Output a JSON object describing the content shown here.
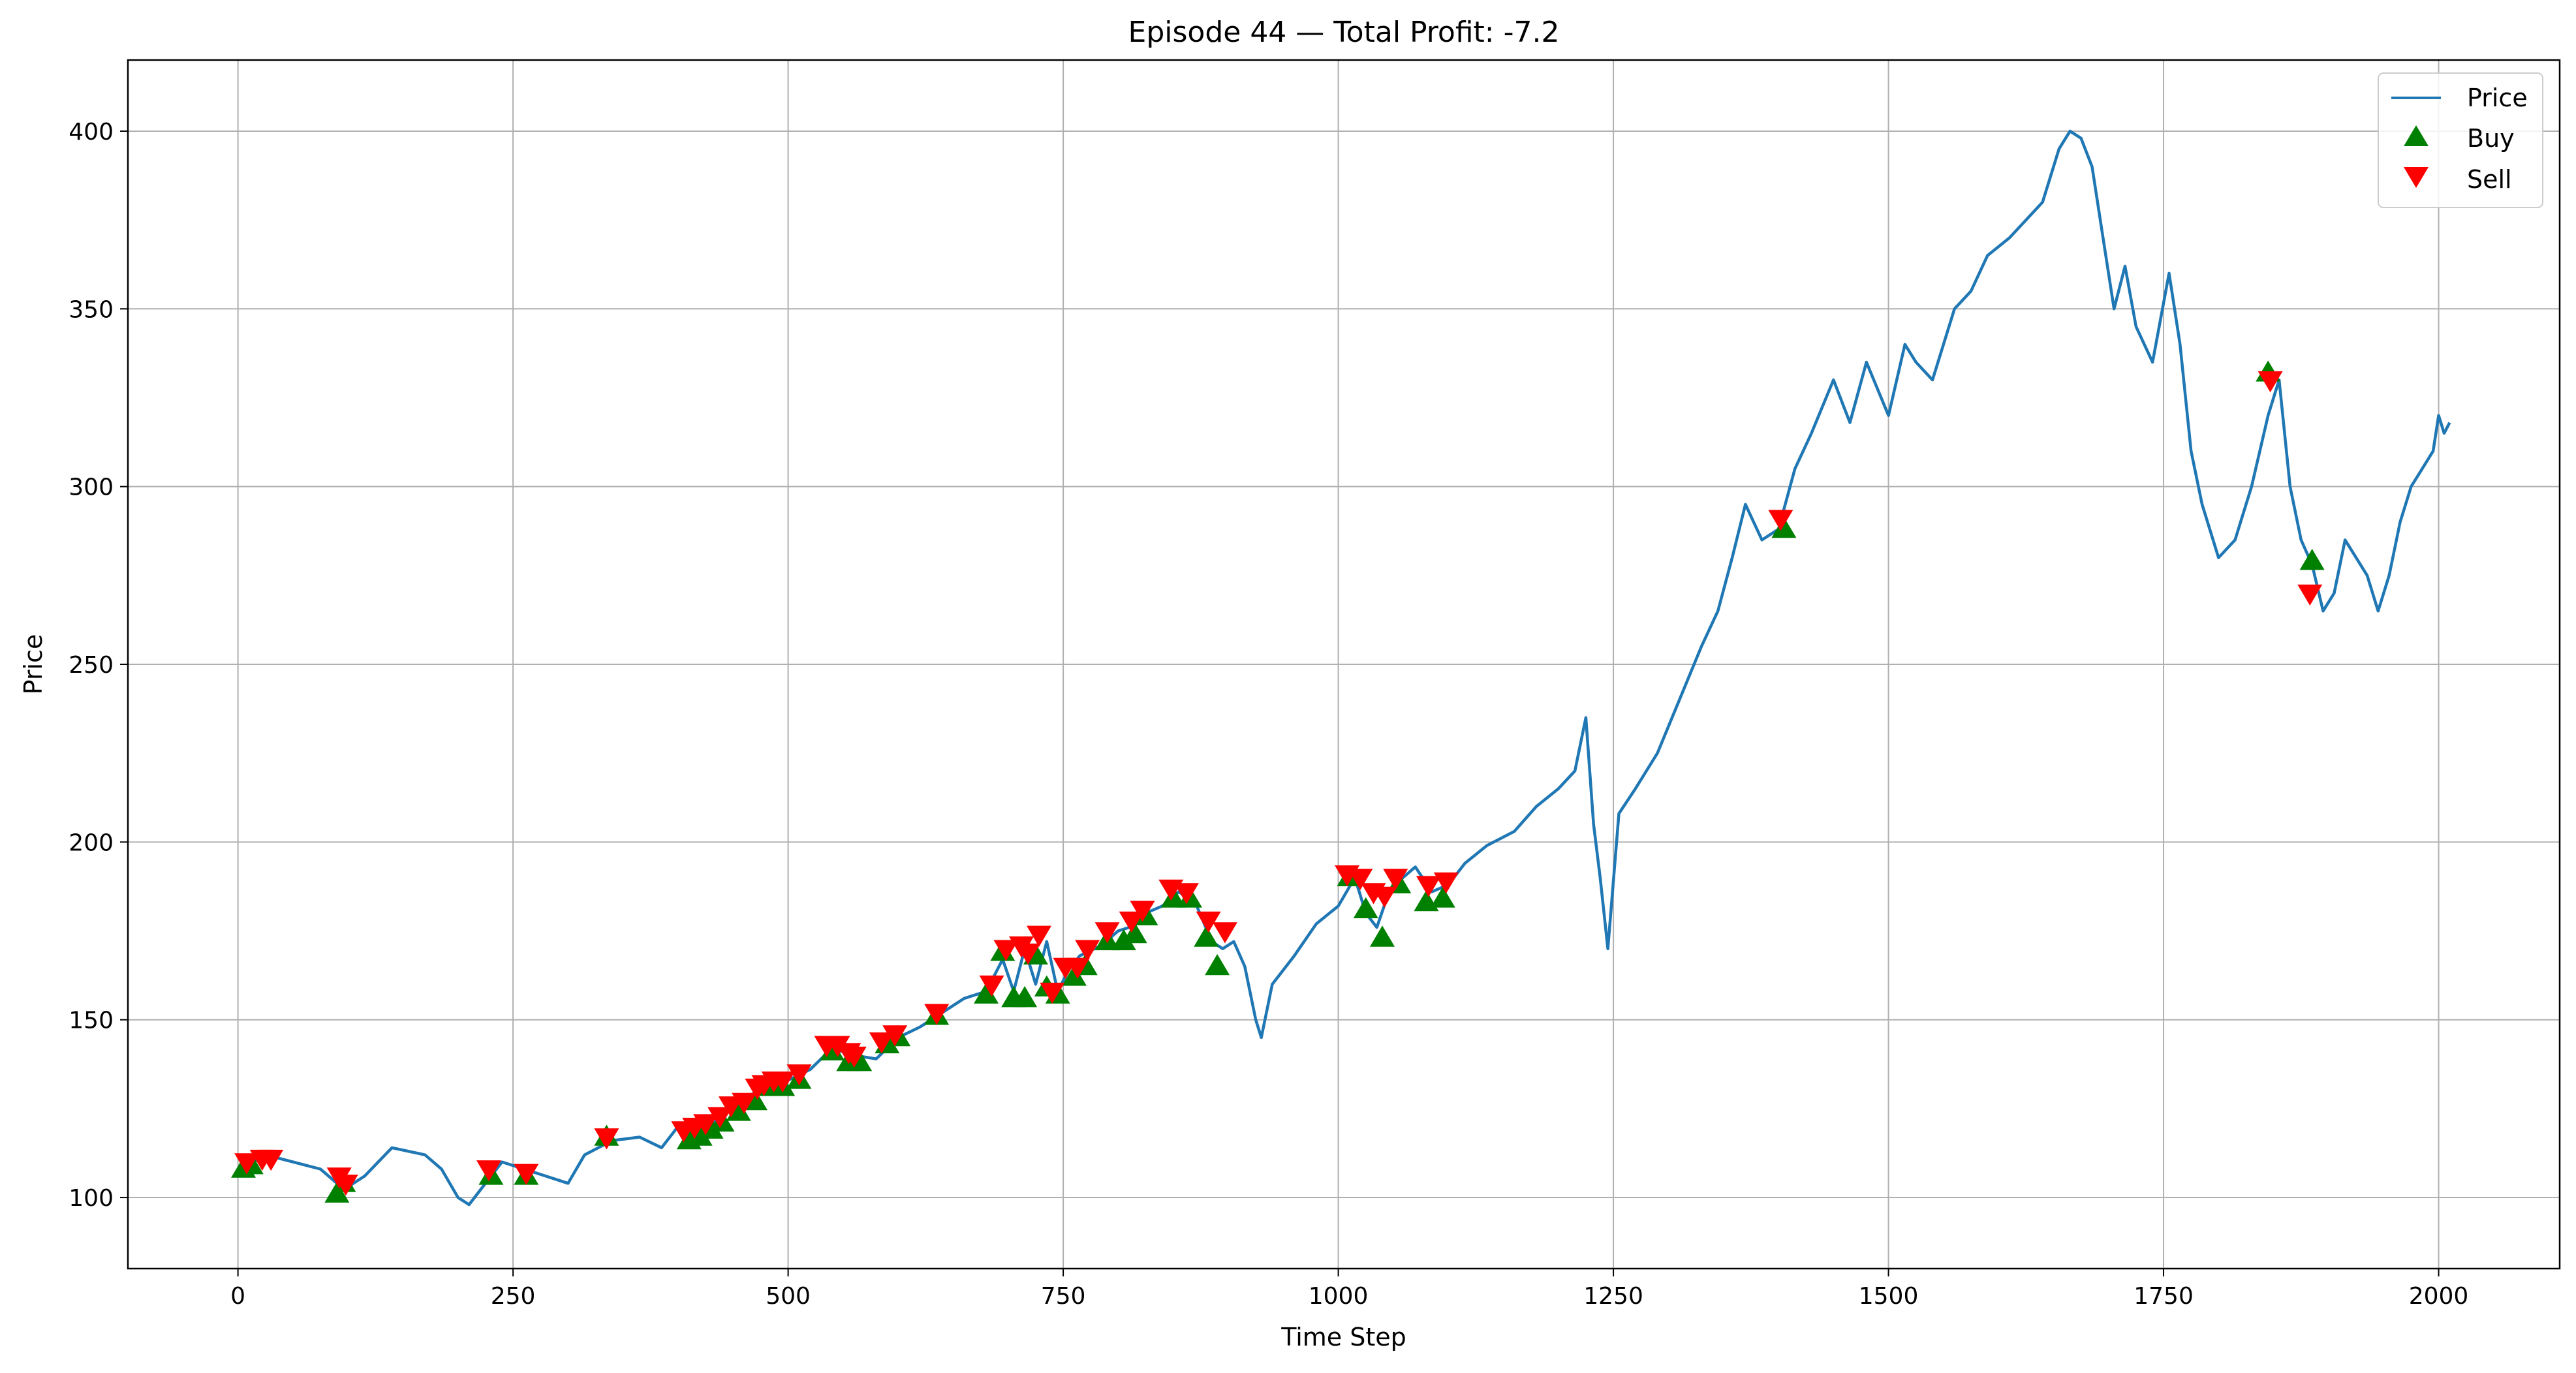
{
  "chart_data": {
    "type": "line",
    "title": "Episode 44 — Total Profit: -7.2",
    "xlabel": "Time Step",
    "ylabel": "Price",
    "xlim": [
      -100,
      2110
    ],
    "ylim": [
      80,
      420
    ],
    "xticks": [
      0,
      250,
      500,
      750,
      1000,
      1250,
      1500,
      1750,
      2000
    ],
    "yticks": [
      100,
      150,
      200,
      250,
      300,
      350,
      400
    ],
    "grid": true,
    "legend": {
      "position": "top-right",
      "entries": [
        "Price",
        "Buy",
        "Sell"
      ]
    },
    "colors": {
      "price": "#1f77b4",
      "buy": "#008000",
      "sell": "#ff0000",
      "grid": "#b0b0b0"
    },
    "series": [
      {
        "name": "Price",
        "marker": "line",
        "x": [
          0,
          25,
          50,
          75,
          90,
          100,
          115,
          140,
          170,
          185,
          200,
          210,
          225,
          240,
          260,
          280,
          300,
          315,
          340,
          365,
          385,
          400,
          420,
          440,
          460,
          480,
          500,
          520,
          540,
          560,
          580,
          600,
          620,
          640,
          660,
          680,
          695,
          705,
          715,
          725,
          735,
          745,
          755,
          765,
          785,
          800,
          810,
          825,
          840,
          855,
          870,
          885,
          895,
          905,
          915,
          925,
          930,
          940,
          960,
          980,
          1000,
          1015,
          1025,
          1035,
          1045,
          1055,
          1070,
          1085,
          1100,
          1115,
          1135,
          1160,
          1180,
          1200,
          1215,
          1225,
          1232,
          1238,
          1245,
          1255,
          1270,
          1290,
          1310,
          1330,
          1345,
          1358,
          1370,
          1385,
          1400,
          1415,
          1430,
          1450,
          1465,
          1480,
          1500,
          1515,
          1525,
          1540,
          1560,
          1575,
          1590,
          1610,
          1625,
          1640,
          1655,
          1665,
          1675,
          1685,
          1695,
          1705,
          1715,
          1725,
          1740,
          1755,
          1765,
          1775,
          1785,
          1800,
          1815,
          1830,
          1845,
          1855,
          1865,
          1875,
          1885,
          1895,
          1905,
          1915,
          1925,
          1935,
          1945,
          1955,
          1965,
          1975,
          1985,
          1995,
          2000,
          2005,
          2010
        ],
        "y": [
          107,
          112,
          110,
          108,
          104,
          103,
          106,
          114,
          112,
          108,
          100,
          98,
          104,
          110,
          108,
          106,
          104,
          112,
          116,
          117,
          114,
          120,
          118,
          123,
          128,
          131,
          133,
          136,
          142,
          140,
          139,
          145,
          148,
          152,
          156,
          158,
          167,
          158,
          170,
          160,
          172,
          158,
          164,
          168,
          171,
          175,
          176,
          180,
          182,
          186,
          183,
          172,
          170,
          172,
          165,
          150,
          145,
          160,
          168,
          177,
          182,
          190,
          180,
          176,
          185,
          189,
          193,
          186,
          188,
          194,
          199,
          203,
          210,
          215,
          220,
          235,
          205,
          190,
          170,
          208,
          215,
          225,
          240,
          255,
          265,
          280,
          295,
          285,
          288,
          305,
          315,
          330,
          318,
          335,
          320,
          340,
          335,
          330,
          350,
          355,
          365,
          370,
          375,
          380,
          395,
          400,
          398,
          390,
          370,
          350,
          362,
          345,
          335,
          360,
          340,
          310,
          295,
          280,
          285,
          300,
          320,
          330,
          300,
          285,
          278,
          265,
          270,
          285,
          280,
          275,
          265,
          275,
          290,
          300,
          305,
          310,
          320,
          315,
          318
        ]
      },
      {
        "name": "Buy",
        "marker": "triangle-up",
        "x": [
          5,
          12,
          90,
          96,
          230,
          262,
          335,
          410,
          420,
          430,
          440,
          455,
          470,
          485,
          495,
          510,
          540,
          555,
          565,
          590,
          600,
          635,
          680,
          695,
          705,
          715,
          725,
          735,
          745,
          760,
          770,
          790,
          805,
          815,
          825,
          850,
          865,
          880,
          890,
          1010,
          1025,
          1040,
          1055,
          1080,
          1095,
          1405,
          1845,
          1885
        ],
        "y": [
          108,
          109,
          101,
          104,
          106,
          106,
          117,
          116,
          117,
          119,
          121,
          124,
          127,
          131,
          131,
          133,
          141,
          138,
          138,
          143,
          145,
          151,
          157,
          169,
          156,
          156,
          168,
          159,
          157,
          162,
          165,
          172,
          172,
          174,
          179,
          184,
          184,
          173,
          165,
          190,
          181,
          173,
          188,
          183,
          184,
          288,
          332,
          279
        ]
      },
      {
        "name": "Sell",
        "marker": "triangle-down",
        "x": [
          8,
          22,
          30,
          92,
          98,
          228,
          262,
          335,
          405,
          415,
          425,
          438,
          448,
          460,
          472,
          478,
          487,
          495,
          510,
          535,
          545,
          555,
          560,
          585,
          597,
          635,
          685,
          698,
          712,
          718,
          728,
          740,
          752,
          763,
          772,
          790,
          812,
          822,
          848,
          862,
          882,
          897,
          1008,
          1020,
          1032,
          1042,
          1052,
          1082,
          1098,
          1402,
          1847,
          1883
        ],
        "y": [
          110,
          111,
          111,
          106,
          104,
          108,
          107,
          117,
          119,
          120,
          121,
          123,
          126,
          127,
          131,
          132,
          133,
          133,
          135,
          143,
          143,
          141,
          140,
          144,
          146,
          152,
          160,
          170,
          171,
          169,
          174,
          158,
          165,
          165,
          170,
          175,
          178,
          181,
          187,
          186,
          178,
          175,
          191,
          190,
          186,
          185,
          190,
          188,
          189,
          291,
          330,
          270
        ]
      }
    ]
  }
}
